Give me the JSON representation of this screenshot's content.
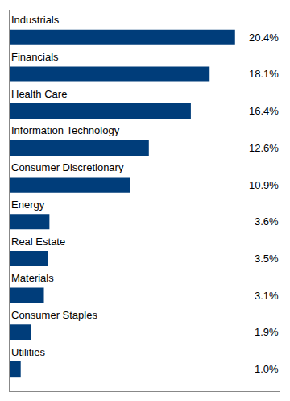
{
  "chart_data": {
    "type": "bar",
    "orientation": "horizontal",
    "categories": [
      "Utilities",
      "Consumer Staples",
      "Materials",
      "Real Estate",
      "Energy",
      "Consumer Discretionary",
      "Information Technology",
      "Health Care",
      "Financials",
      "Industrials"
    ],
    "values": [
      1.0,
      1.9,
      3.1,
      3.5,
      3.6,
      10.9,
      12.6,
      16.4,
      18.1,
      20.4
    ],
    "value_labels": [
      "1.0%",
      "1.9%",
      "3.1%",
      "3.5%",
      "3.6%",
      "10.9%",
      "12.6%",
      "16.4%",
      "18.1%",
      "20.4%"
    ],
    "data_labels": true,
    "color": "#003d7a",
    "xlim": [
      0,
      24.5
    ],
    "xticks": [],
    "tick_labels": false,
    "grid": false
  }
}
